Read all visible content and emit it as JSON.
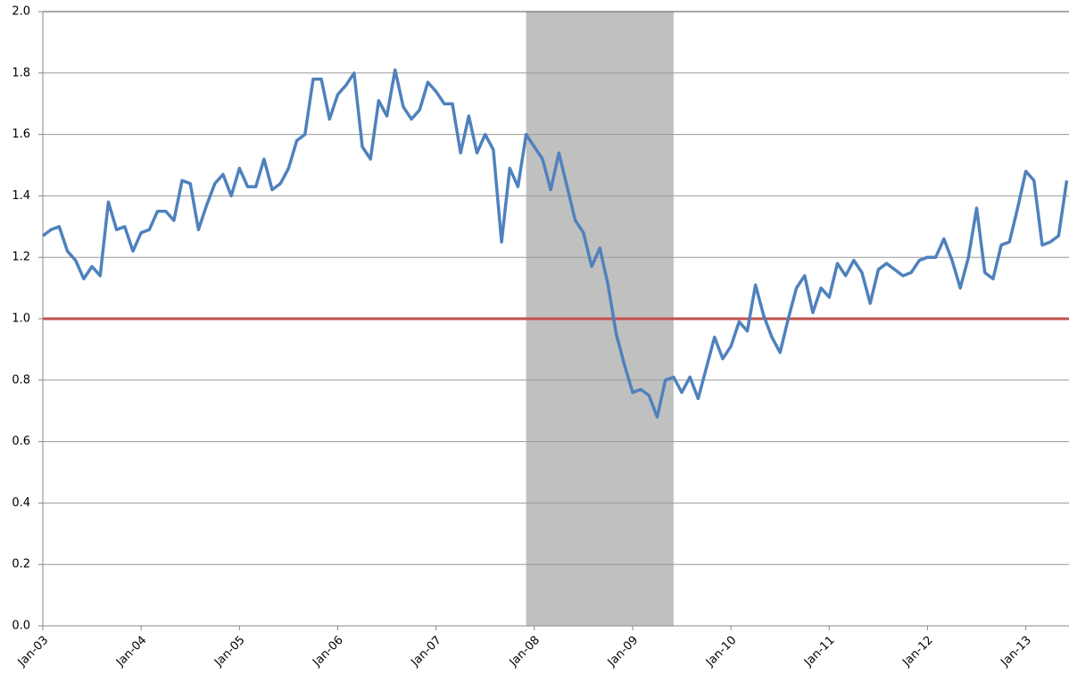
{
  "chart_data": {
    "type": "line",
    "categories": [
      "Jan-03",
      null,
      null,
      null,
      null,
      null,
      null,
      null,
      null,
      null,
      null,
      null,
      "Jan-04",
      null,
      null,
      null,
      null,
      null,
      null,
      null,
      null,
      null,
      null,
      null,
      "Jan-05",
      null,
      null,
      null,
      null,
      null,
      null,
      null,
      null,
      null,
      null,
      null,
      "Jan-06",
      null,
      null,
      null,
      null,
      null,
      null,
      null,
      null,
      null,
      null,
      null,
      "Jan-07",
      null,
      null,
      null,
      null,
      null,
      null,
      null,
      null,
      null,
      null,
      null,
      "Jan-08",
      null,
      null,
      null,
      null,
      null,
      null,
      null,
      null,
      null,
      null,
      null,
      "Jan-09",
      null,
      null,
      null,
      null,
      null,
      null,
      null,
      null,
      null,
      null,
      null,
      "Jan-10",
      null,
      null,
      null,
      null,
      null,
      null,
      null,
      null,
      null,
      null,
      null,
      "Jan-11",
      null,
      null,
      null,
      null,
      null,
      null,
      null,
      null,
      null,
      null,
      null,
      "Jan-12",
      null,
      null,
      null,
      null,
      null,
      null,
      null,
      null,
      null,
      null,
      null,
      "Jan-13",
      null,
      null,
      null,
      null,
      null
    ],
    "values": [
      1.27,
      1.29,
      1.3,
      1.22,
      1.19,
      1.13,
      1.17,
      1.14,
      1.38,
      1.29,
      1.3,
      1.22,
      1.28,
      1.29,
      1.35,
      1.35,
      1.32,
      1.45,
      1.44,
      1.29,
      1.37,
      1.44,
      1.47,
      1.4,
      1.49,
      1.43,
      1.43,
      1.52,
      1.42,
      1.44,
      1.49,
      1.58,
      1.6,
      1.78,
      1.78,
      1.65,
      1.73,
      1.76,
      1.8,
      1.56,
      1.52,
      1.71,
      1.66,
      1.81,
      1.69,
      1.65,
      1.68,
      1.77,
      1.74,
      1.7,
      1.7,
      1.54,
      1.66,
      1.54,
      1.6,
      1.55,
      1.25,
      1.49,
      1.43,
      1.6,
      1.56,
      1.52,
      1.42,
      1.54,
      1.43,
      1.32,
      1.28,
      1.17,
      1.23,
      1.11,
      0.95,
      0.85,
      0.76,
      0.77,
      0.75,
      0.68,
      0.8,
      0.81,
      0.76,
      0.81,
      0.74,
      0.84,
      0.94,
      0.87,
      0.91,
      0.99,
      0.96,
      1.11,
      1.01,
      0.94,
      0.89,
      1.0,
      1.1,
      1.14,
      1.02,
      1.1,
      1.07,
      1.18,
      1.14,
      1.19,
      1.15,
      1.05,
      1.16,
      1.18,
      1.16,
      1.14,
      1.15,
      1.19,
      1.2,
      1.2,
      1.26,
      1.19,
      1.1,
      1.2,
      1.36,
      1.15,
      1.13,
      1.24,
      1.25,
      1.36,
      1.48,
      1.45,
      1.24,
      1.25,
      1.27,
      1.45
    ],
    "color": "#4f81bd",
    "reference_line": 1,
    "reference_color": "#c0504d",
    "shaded_range": [
      59,
      77
    ],
    "shade_color": "#c0c0c0",
    "ylim": [
      0,
      2
    ],
    "yticks": [
      {
        "value": 0,
        "label": "0.0"
      },
      0.2,
      0.4,
      0.6,
      0.8,
      {
        "value": 1,
        "label": "1.0"
      },
      1.2,
      1.4,
      1.6,
      1.8,
      {
        "value": 2,
        "label": "2.0"
      }
    ],
    "grid": true
  }
}
